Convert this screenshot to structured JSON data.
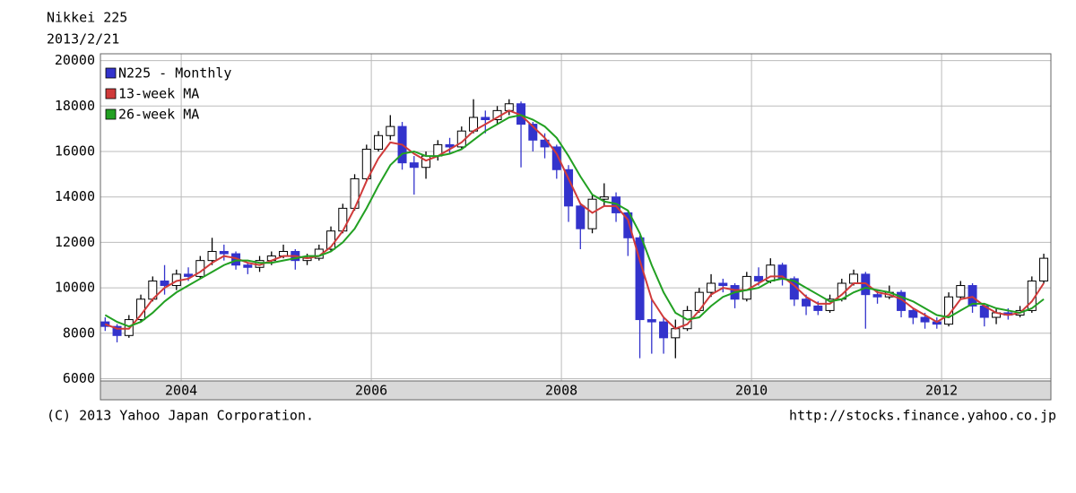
{
  "chart_data": {
    "type": "candlestick",
    "title": "Nikkei 225",
    "subtitle": "2013/2/21",
    "copyright": "(C) 2013 Yahoo Japan Corporation.",
    "source": "http://stocks.finance.yahoo.co.jp",
    "xlim": [
      2003.15,
      2013.15
    ],
    "xticks": [
      2004,
      2006,
      2008,
      2010,
      2012
    ],
    "ylim": [
      5900,
      20300
    ],
    "yticks": [
      6000,
      8000,
      10000,
      12000,
      14000,
      16000,
      18000,
      20000
    ],
    "grid": true,
    "legend": "upper left",
    "x": [
      2003.2,
      2003.325,
      2003.45,
      2003.575,
      2003.7,
      2003.825,
      2003.95,
      2004.075,
      2004.2,
      2004.325,
      2004.45,
      2004.575,
      2004.7,
      2004.825,
      2004.95,
      2005.075,
      2005.2,
      2005.325,
      2005.45,
      2005.575,
      2005.7,
      2005.825,
      2005.95,
      2006.075,
      2006.2,
      2006.325,
      2006.45,
      2006.575,
      2006.7,
      2006.825,
      2006.95,
      2007.075,
      2007.2,
      2007.325,
      2007.45,
      2007.575,
      2007.7,
      2007.825,
      2007.95,
      2008.075,
      2008.2,
      2008.325,
      2008.45,
      2008.575,
      2008.7,
      2008.825,
      2008.95,
      2009.075,
      2009.2,
      2009.325,
      2009.45,
      2009.575,
      2009.7,
      2009.825,
      2009.95,
      2010.075,
      2010.2,
      2010.325,
      2010.45,
      2010.575,
      2010.7,
      2010.825,
      2010.95,
      2011.075,
      2011.2,
      2011.325,
      2011.45,
      2011.575,
      2011.7,
      2011.825,
      2011.95,
      2012.075,
      2012.2,
      2012.325,
      2012.45,
      2012.575,
      2012.7,
      2012.825,
      2012.95,
      2013.075
    ],
    "candles": {
      "name": "N225 - Monthly",
      "up_color": "#ffffff",
      "down_color": "#3333cc",
      "open": [
        8500,
        8300,
        7900,
        8600,
        9500,
        10300,
        10100,
        10600,
        10500,
        11200,
        11600,
        11500,
        11000,
        10900,
        11200,
        11400,
        11600,
        11200,
        11300,
        11700,
        12500,
        13500,
        14800,
        16100,
        16700,
        17100,
        15500,
        15300,
        15800,
        16300,
        16200,
        16900,
        17500,
        17400,
        17800,
        18100,
        17200,
        16500,
        16200,
        15200,
        13600,
        12600,
        13900,
        14000,
        13300,
        12200,
        8600,
        8500,
        7800,
        8200,
        9000,
        9800,
        10200,
        10100,
        9500,
        10500,
        10300,
        11000,
        10400,
        9500,
        9200,
        9000,
        9500,
        10200,
        10600,
        9700,
        9600,
        9800,
        9000,
        8700,
        8500,
        8400,
        9600,
        10100,
        9200,
        8700,
        8900,
        8800,
        9000,
        10300
      ],
      "high": [
        8700,
        8400,
        8800,
        9700,
        10500,
        11000,
        10800,
        10900,
        11400,
        12200,
        11900,
        11600,
        11100,
        11400,
        11600,
        11900,
        11700,
        11500,
        11900,
        12700,
        13700,
        15000,
        16300,
        16900,
        17600,
        17300,
        15800,
        16000,
        16500,
        16600,
        17100,
        18300,
        17800,
        18000,
        18300,
        18200,
        17300,
        16800,
        16300,
        15400,
        13700,
        14100,
        14600,
        14200,
        13400,
        12300,
        9500,
        8700,
        8600,
        9200,
        10000,
        10600,
        10400,
        10200,
        10700,
        10900,
        11300,
        11100,
        10500,
        9700,
        9400,
        9700,
        10400,
        10800,
        10700,
        9900,
        10100,
        9900,
        9100,
        8900,
        8700,
        9800,
        10300,
        10200,
        9300,
        9100,
        9100,
        9200,
        10500,
        11500
      ],
      "low": [
        8100,
        7600,
        7800,
        8500,
        9400,
        9700,
        9900,
        10300,
        10400,
        11000,
        11200,
        10800,
        10600,
        10700,
        11000,
        11300,
        10800,
        11000,
        11200,
        11600,
        12400,
        13400,
        14700,
        16000,
        16500,
        15200,
        14100,
        14800,
        15600,
        15900,
        16100,
        16800,
        16800,
        17200,
        17600,
        15300,
        16000,
        15700,
        14800,
        12900,
        11700,
        12400,
        13600,
        12900,
        11400,
        6900,
        7100,
        7100,
        6900,
        8100,
        8900,
        9600,
        9800,
        9100,
        9400,
        10100,
        10200,
        10100,
        9200,
        8800,
        8800,
        8900,
        9400,
        10100,
        8200,
        9300,
        9500,
        8700,
        8400,
        8200,
        8200,
        8300,
        9500,
        8900,
        8300,
        8400,
        8600,
        8700,
        8900,
        10200
      ],
      "close": [
        8300,
        7900,
        8600,
        9500,
        10300,
        10100,
        10600,
        10500,
        11200,
        11600,
        11500,
        11000,
        10900,
        11200,
        11400,
        11600,
        11200,
        11300,
        11700,
        12500,
        13500,
        14800,
        16100,
        16700,
        17100,
        15500,
        15300,
        15800,
        16300,
        16200,
        16900,
        17500,
        17400,
        17800,
        18100,
        17200,
        16500,
        16200,
        15200,
        13600,
        12600,
        13900,
        14000,
        13300,
        12200,
        8600,
        8500,
        7800,
        8200,
        9000,
        9800,
        10200,
        10100,
        9500,
        10500,
        10300,
        11000,
        10400,
        9500,
        9200,
        9000,
        9500,
        10200,
        10600,
        9700,
        9600,
        9800,
        9000,
        8700,
        8500,
        8400,
        9600,
        10100,
        9200,
        8700,
        8900,
        8800,
        9000,
        10300,
        11300
      ]
    },
    "series": [
      {
        "name": "13-week MA",
        "color": "#d03a3a",
        "values": [
          8400,
          8200,
          8200,
          8800,
          9500,
          10000,
          10300,
          10400,
          10700,
          11100,
          11400,
          11300,
          11100,
          11000,
          11200,
          11400,
          11400,
          11300,
          11400,
          11800,
          12500,
          13500,
          14700,
          15700,
          16400,
          16300,
          15900,
          15600,
          15800,
          16100,
          16400,
          16900,
          17200,
          17500,
          17800,
          17600,
          17100,
          16600,
          15900,
          14800,
          13700,
          13300,
          13600,
          13600,
          13000,
          11200,
          9500,
          8700,
          8200,
          8400,
          9000,
          9700,
          10000,
          9900,
          9900,
          10200,
          10500,
          10500,
          10100,
          9600,
          9300,
          9300,
          9700,
          10200,
          10200,
          9800,
          9700,
          9500,
          9100,
          8800,
          8500,
          8800,
          9500,
          9600,
          9200,
          8900,
          8800,
          8900,
          9400,
          10200
        ]
      },
      {
        "name": "26-week MA",
        "color": "#22a022",
        "values": [
          8800,
          8500,
          8300,
          8500,
          8900,
          9400,
          9800,
          10100,
          10400,
          10700,
          11000,
          11200,
          11200,
          11100,
          11100,
          11200,
          11300,
          11400,
          11400,
          11600,
          12000,
          12600,
          13500,
          14500,
          15400,
          15900,
          16000,
          15800,
          15800,
          15900,
          16100,
          16500,
          16900,
          17200,
          17500,
          17600,
          17400,
          17100,
          16600,
          15800,
          14900,
          14100,
          13800,
          13700,
          13400,
          12400,
          11000,
          9800,
          8900,
          8600,
          8700,
          9200,
          9600,
          9800,
          9900,
          10000,
          10300,
          10400,
          10300,
          10000,
          9700,
          9400,
          9500,
          9800,
          10000,
          9900,
          9800,
          9600,
          9400,
          9100,
          8800,
          8700,
          9000,
          9300,
          9300,
          9100,
          9000,
          8900,
          9100,
          9500
        ]
      }
    ]
  }
}
